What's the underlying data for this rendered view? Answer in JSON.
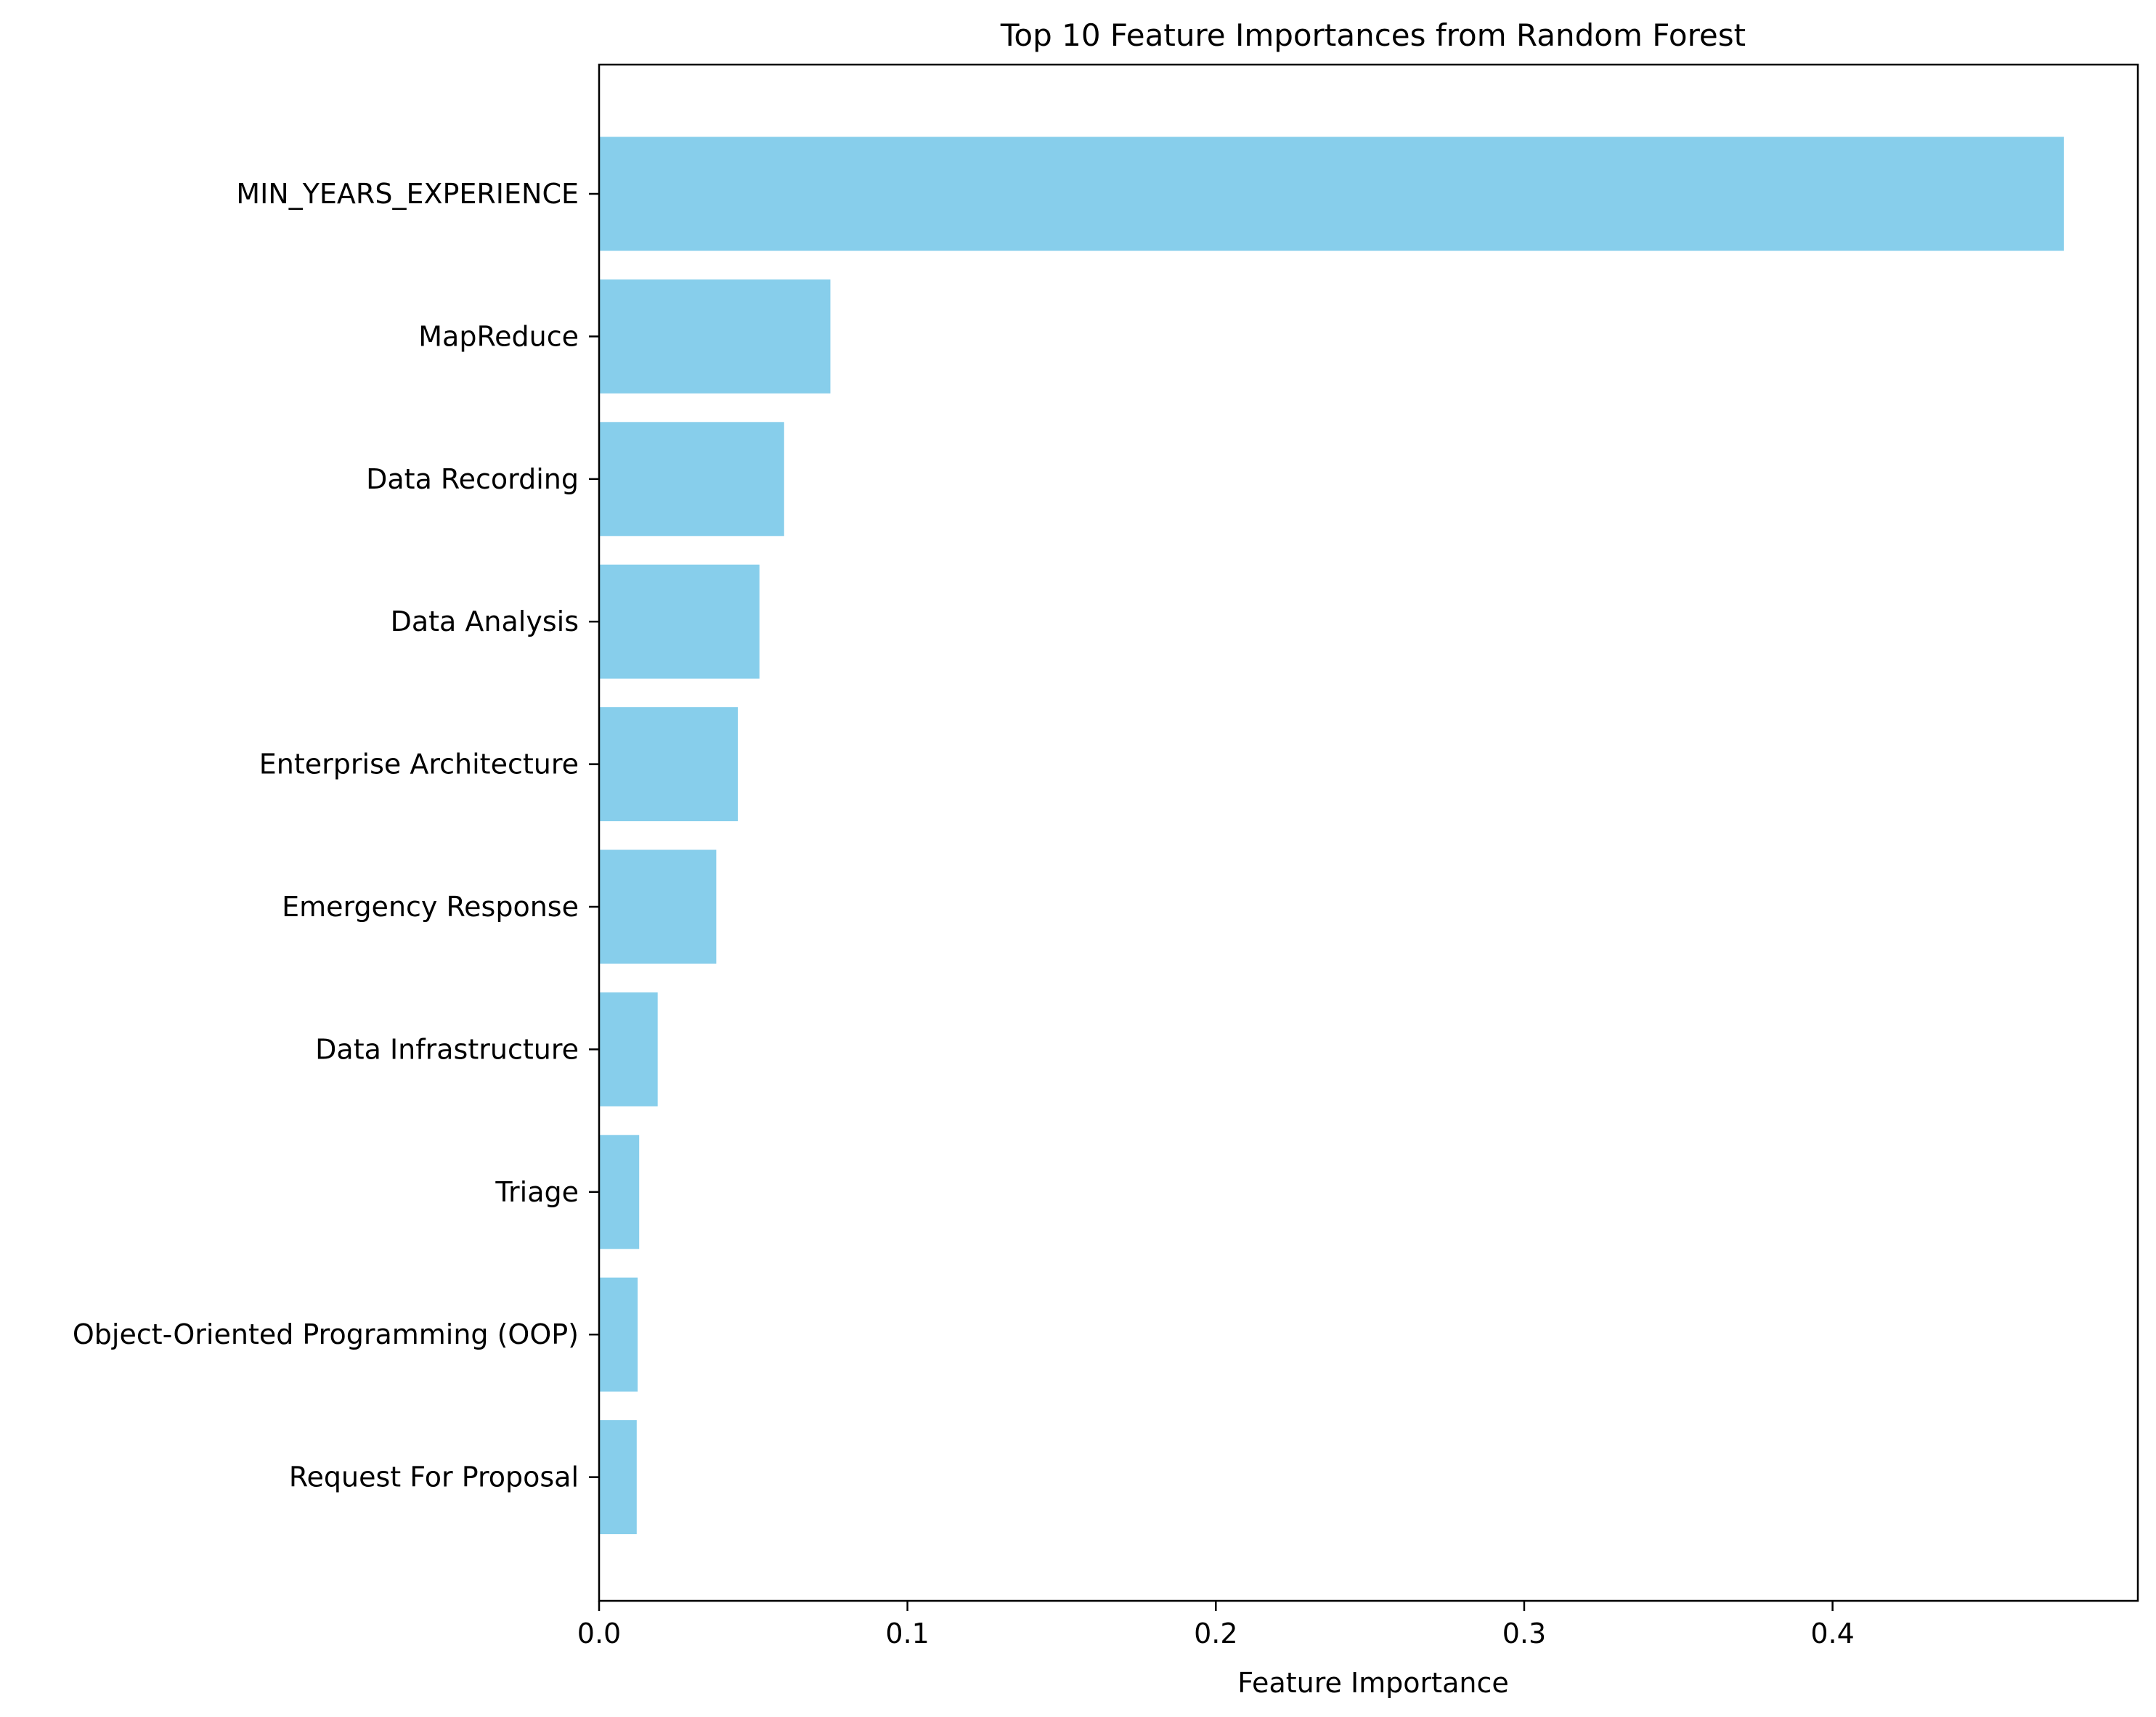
{
  "chart_data": {
    "type": "bar",
    "orientation": "horizontal",
    "title": "Top 10 Feature Importances from Random Forest",
    "xlabel": "Feature Importance",
    "ylabel": "",
    "categories": [
      "MIN_YEARS_EXPERIENCE",
      "MapReduce",
      "Data Recording",
      "Data Analysis",
      "Enterprise Architecture",
      "Emergency Response",
      "Data Infrastructure",
      "Triage",
      "Object-Oriented Programming (OOP)",
      "Request For Proposal"
    ],
    "values": [
      0.475,
      0.075,
      0.06,
      0.052,
      0.045,
      0.038,
      0.019,
      0.013,
      0.0125,
      0.0122
    ],
    "xlim": [
      0,
      0.499
    ],
    "xticks": [
      0.0,
      0.1,
      0.2,
      0.3,
      0.4
    ],
    "xtick_labels": [
      "0.0",
      "0.1",
      "0.2",
      "0.3",
      "0.4"
    ],
    "bar_color": "#87ceeb",
    "grid": false,
    "legend": false
  }
}
